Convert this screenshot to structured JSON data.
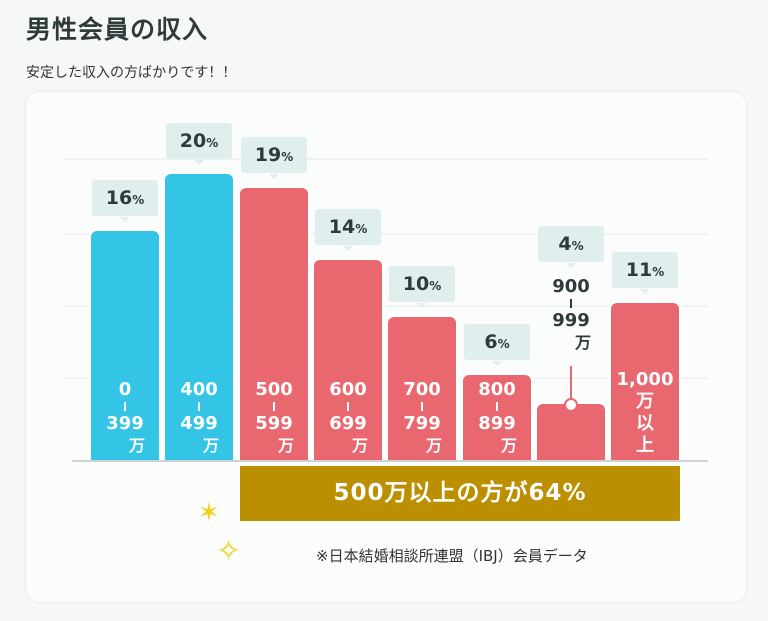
{
  "header": {
    "title": "男性会員の収入",
    "subtitle": "安定した収入の方ばかりです！！"
  },
  "chart_data": {
    "type": "bar",
    "title": "男性会員の収入",
    "categories": [
      {
        "from": "0",
        "to": "399",
        "unit": "万"
      },
      {
        "from": "400",
        "to": "499",
        "unit": "万"
      },
      {
        "from": "500",
        "to": "599",
        "unit": "万"
      },
      {
        "from": "600",
        "to": "699",
        "unit": "万"
      },
      {
        "from": "700",
        "to": "799",
        "unit": "万"
      },
      {
        "from": "800",
        "to": "899",
        "unit": "万"
      },
      {
        "from": "900",
        "to": "999",
        "unit": "万"
      },
      {
        "from": "1,000",
        "to": "",
        "unit": "万以上"
      }
    ],
    "values": [
      16,
      20,
      19,
      14,
      10,
      6,
      4,
      11
    ],
    "value_suffix": "%",
    "colors": [
      "#33c4e6",
      "#33c4e6",
      "#e9676f",
      "#e9676f",
      "#e9676f",
      "#e9676f",
      "#e9676f",
      "#e9676f"
    ],
    "ylim": [
      0,
      20
    ]
  },
  "banner": {
    "text": "500万以上の方が64%",
    "color": "#bb8f00"
  },
  "note": "※日本結婚相談所連盟（IBJ）会員データ",
  "icons": {
    "sparkle1": "✶",
    "sparkle2": "✧"
  }
}
